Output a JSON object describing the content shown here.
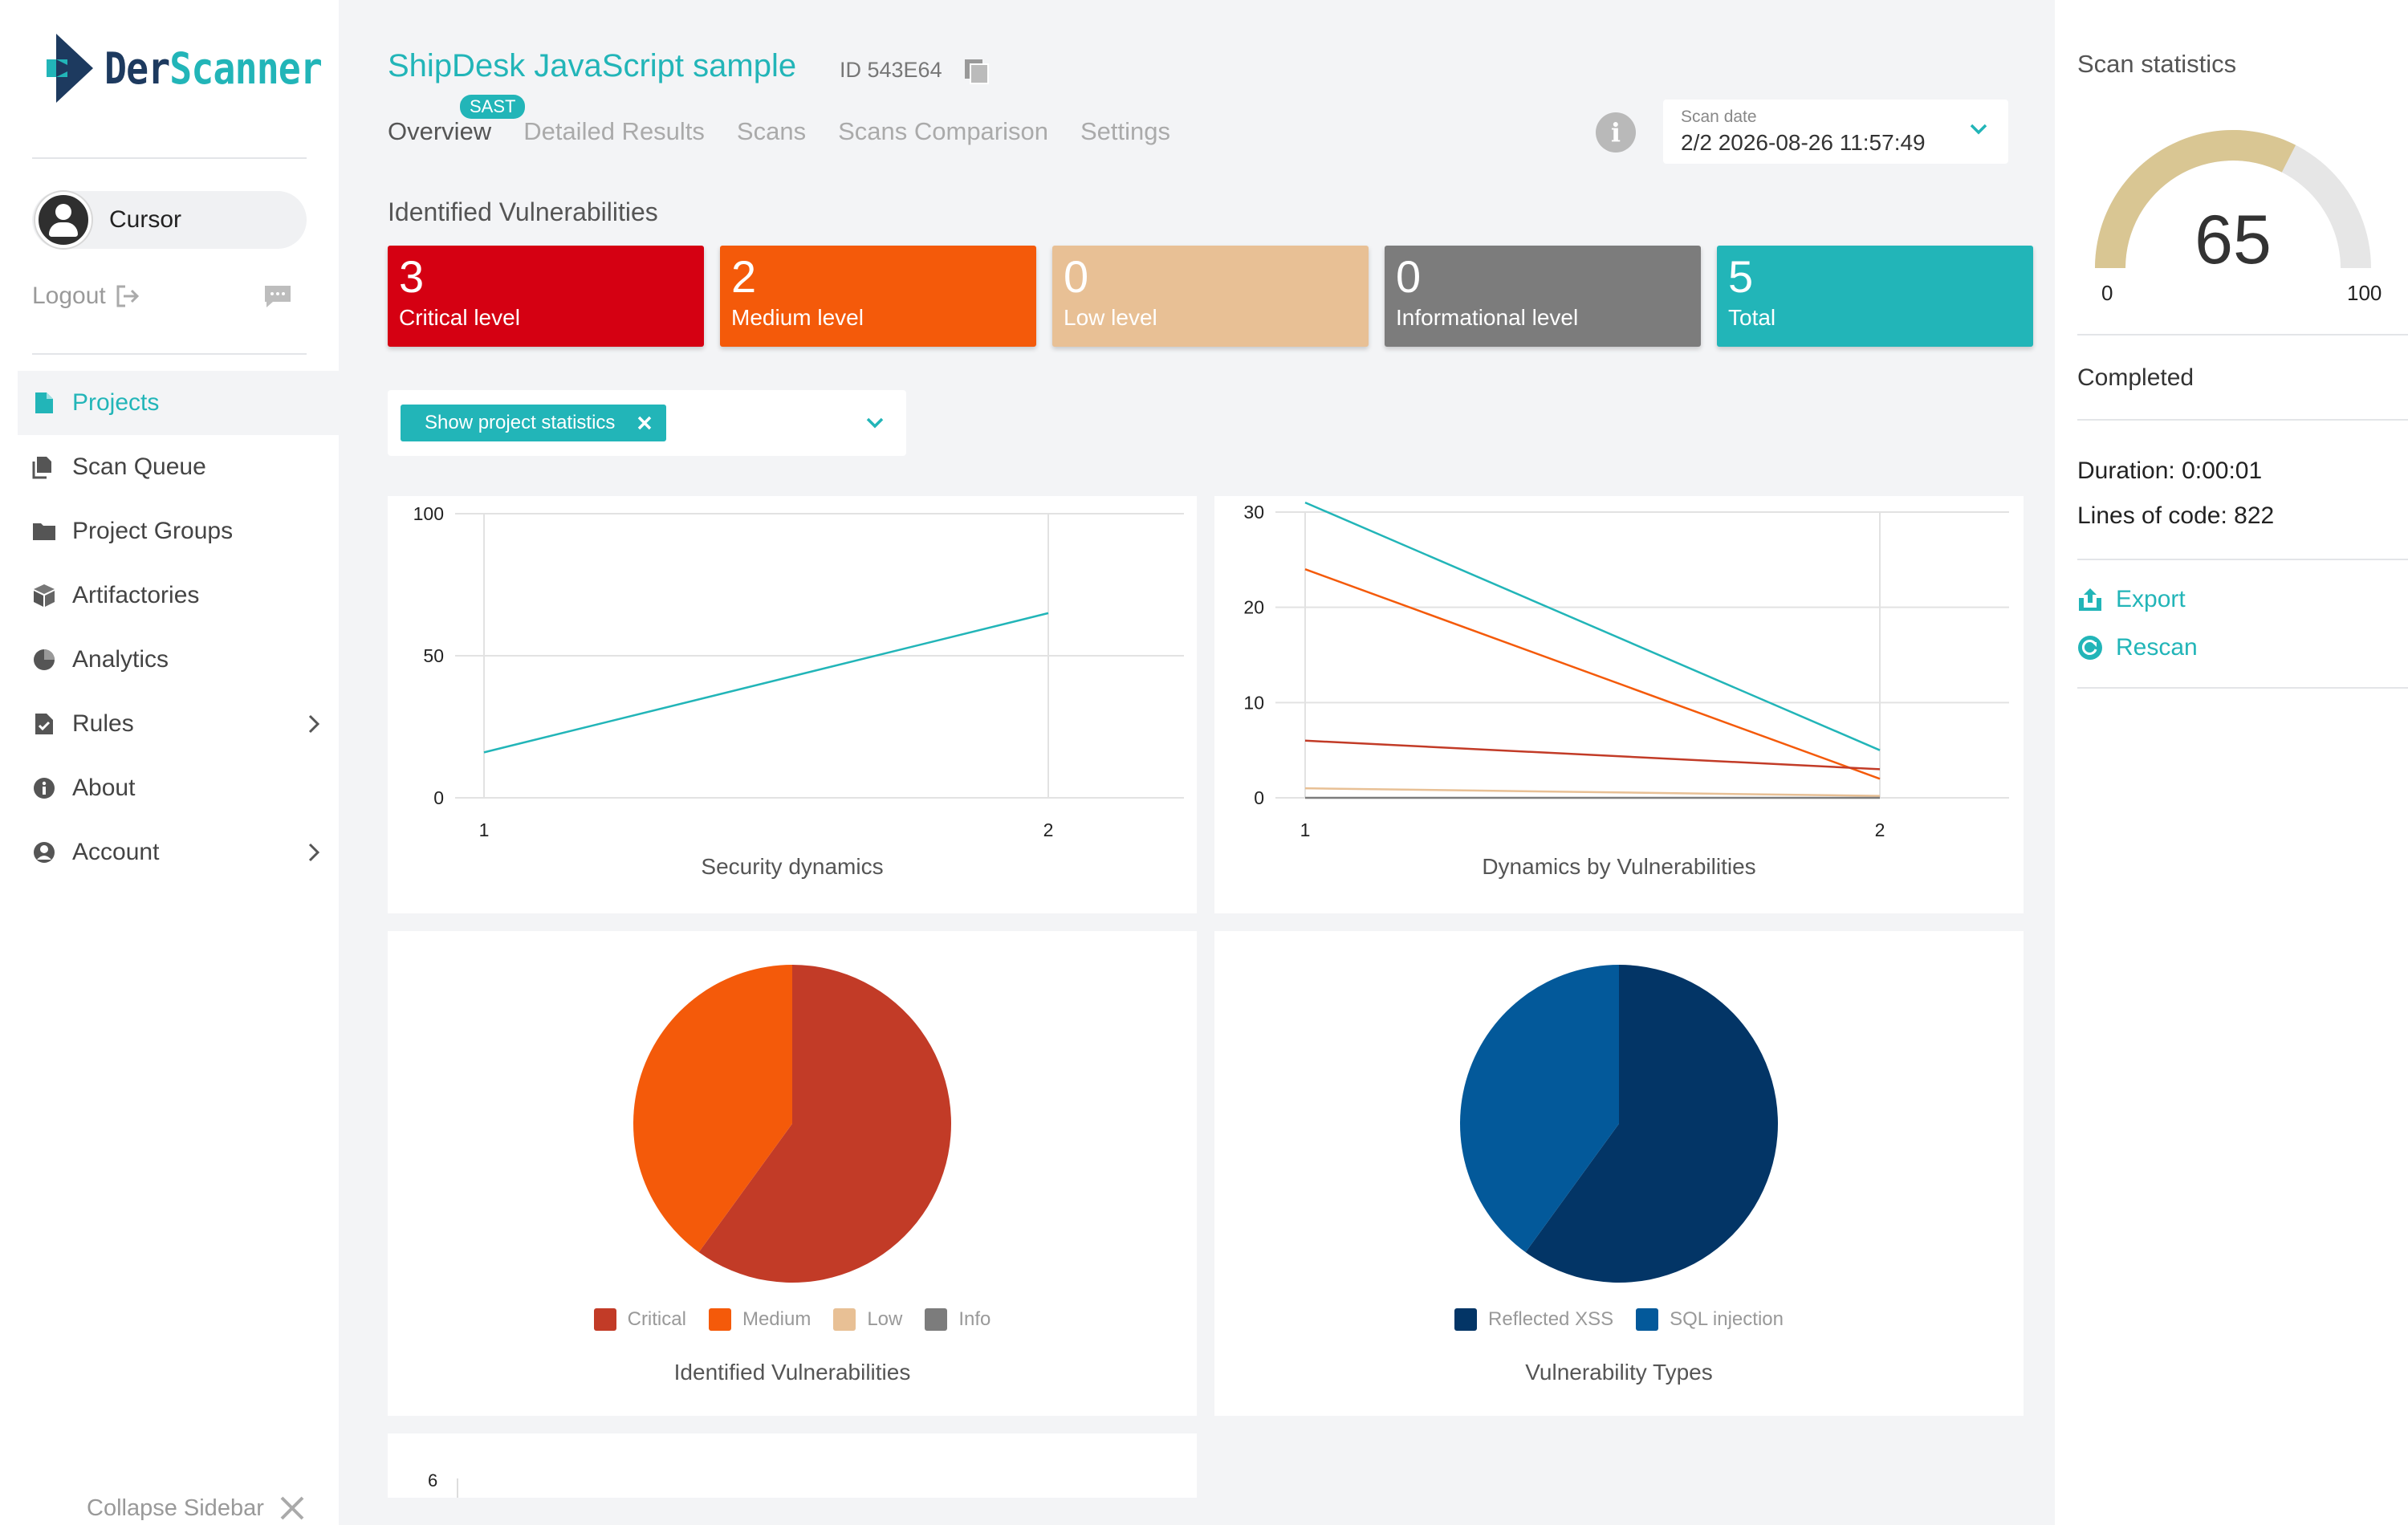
{
  "brand": {
    "part1": "Der",
    "part2": "Scanner"
  },
  "user": {
    "name": "Cursor",
    "logout_label": "Logout"
  },
  "sidebar": {
    "items": [
      {
        "label": "Projects",
        "icon": "file-icon",
        "active": true
      },
      {
        "label": "Scan Queue",
        "icon": "scan-queue-icon"
      },
      {
        "label": "Project Groups",
        "icon": "folder-icon"
      },
      {
        "label": "Artifactories",
        "icon": "box-icon"
      },
      {
        "label": "Analytics",
        "icon": "pie-icon"
      },
      {
        "label": "Rules",
        "icon": "rules-icon",
        "has_submenu": true
      },
      {
        "label": "About",
        "icon": "info-icon"
      },
      {
        "label": "Account",
        "icon": "account-icon",
        "has_submenu": true
      }
    ],
    "collapse_label": "Collapse Sidebar"
  },
  "header": {
    "project_title": "ShipDesk JavaScript sample",
    "project_id": "ID 543E64",
    "tabs": [
      {
        "label": "Overview",
        "active": true,
        "badge": "SAST"
      },
      {
        "label": "Detailed Results"
      },
      {
        "label": "Scans"
      },
      {
        "label": "Scans Comparison"
      },
      {
        "label": "Settings"
      }
    ],
    "scan_date_label": "Scan date",
    "scan_date_value": "2/2 2026-08-26 11:57:49"
  },
  "vulnerabilities": {
    "title": "Identified Vulnerabilities",
    "cards": [
      {
        "count": "3",
        "label": "Critical level",
        "color": "#d50012"
      },
      {
        "count": "2",
        "label": "Medium level",
        "color": "#f45a0a"
      },
      {
        "count": "0",
        "label": "Low level",
        "color": "#e8c095"
      },
      {
        "count": "0",
        "label": "Informational level",
        "color": "#7c7c7c"
      },
      {
        "count": "5",
        "label": "Total",
        "color": "#22b5b8"
      }
    ]
  },
  "stats_filter": {
    "chip_label": "Show project statistics"
  },
  "colors": {
    "accent": "#22b5b8",
    "critical": "#c23b27",
    "medium": "#f45a0a",
    "low": "#e8c095",
    "info": "#7c7c7c",
    "xss": "#033566",
    "sql": "#03599a"
  },
  "panels": {
    "security_dynamics_title": "Security dynamics",
    "dynamics_by_vuln_title": "Dynamics by Vulnerabilities",
    "identified_vuln_title": "Identified Vulnerabilities",
    "vuln_types_title": "Vulnerability Types",
    "bottom_axis_tick": "6"
  },
  "chart_data": [
    {
      "type": "line",
      "title": "Security dynamics",
      "x": [
        1,
        2
      ],
      "series": [
        {
          "values": [
            16,
            65
          ]
        }
      ],
      "xlim": [
        1,
        2
      ],
      "ylim": [
        0,
        100
      ],
      "yticks": [
        0,
        50,
        100
      ],
      "grid": true
    },
    {
      "type": "line",
      "title": "Dynamics by Vulnerabilities",
      "x": [
        1,
        2
      ],
      "series": [
        {
          "color": "#22b5b8",
          "values": [
            31,
            5
          ]
        },
        {
          "color": "#f45a0a",
          "values": [
            24,
            2
          ]
        },
        {
          "color": "#c23b27",
          "values": [
            6,
            3
          ]
        },
        {
          "color": "#e8c095",
          "values": [
            1,
            0.2
          ]
        },
        {
          "color": "#7c7c7c",
          "values": [
            0,
            0
          ]
        }
      ],
      "xlim": [
        1,
        2
      ],
      "ylim": [
        0,
        30
      ],
      "yticks": [
        0,
        10,
        20,
        30
      ],
      "grid": true
    },
    {
      "type": "pie",
      "title": "Identified Vulnerabilities",
      "categories": [
        "Critical",
        "Medium",
        "Low",
        "Info"
      ],
      "values": [
        3,
        2,
        0,
        0
      ],
      "colors": [
        "#c23b27",
        "#f45a0a",
        "#e8c095",
        "#7c7c7c"
      ],
      "legend": "bottom"
    },
    {
      "type": "pie",
      "title": "Vulnerability Types",
      "categories": [
        "Reflected XSS",
        "SQL injection"
      ],
      "values": [
        3,
        2
      ],
      "colors": [
        "#033566",
        "#03599a"
      ],
      "legend": "bottom"
    }
  ],
  "scan_statistics": {
    "title": "Scan statistics",
    "score": "65",
    "score_value": 65,
    "score_min": "0",
    "score_max": "100",
    "status": "Completed",
    "duration": "Duration: 0:00:01",
    "lines_of_code": "Lines of code: 822",
    "export_label": "Export",
    "rescan_label": "Rescan"
  }
}
